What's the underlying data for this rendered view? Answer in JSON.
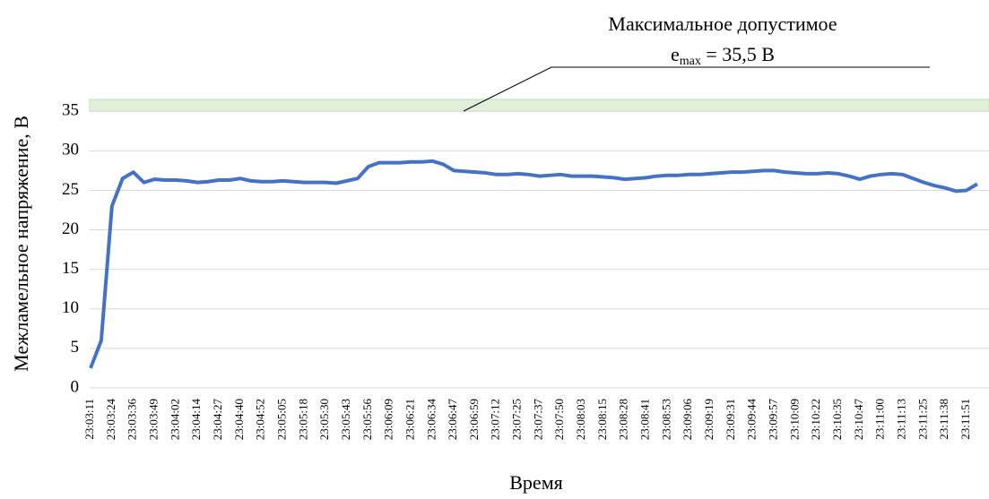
{
  "chart_data": {
    "type": "line",
    "y_axis_label": "Межламельное напряжение, В",
    "x_axis_label": "Время",
    "annotation": {
      "line1": "Максимальное допустимое",
      "symbol": "e",
      "subscript": "max",
      "rest": " = 35,5 В"
    },
    "threshold_band": {
      "range": [
        35,
        36.5
      ],
      "color": "#e2efd9"
    },
    "categories": [
      "23:03:11",
      null,
      "23:03:24",
      null,
      "23:03:36",
      null,
      "23:03:49",
      null,
      "23:04:02",
      null,
      "23:04:14",
      null,
      "23:04:27",
      null,
      "23:04:40",
      null,
      "23:04:52",
      null,
      "23:05:05",
      null,
      "23:05:18",
      null,
      "23:05:30",
      null,
      "23:05:43",
      null,
      "23:05:56",
      null,
      "23:06:09",
      null,
      "23:06:21",
      null,
      "23:06:34",
      null,
      "23:06:47",
      null,
      "23:06:59",
      null,
      "23:07:12",
      null,
      "23:07:25",
      null,
      "23:07:37",
      null,
      "23:07:50",
      null,
      "23:08:03",
      null,
      "23:08:15",
      null,
      "23:08:28",
      null,
      "23:08:41",
      null,
      "23:08:53",
      null,
      "23:09:06",
      null,
      "23:09:19",
      null,
      "23:09:31",
      null,
      "23:09:44",
      null,
      "23:09:57",
      null,
      "23:10:09",
      null,
      "23:10:22",
      null,
      "23:10:35",
      null,
      "23:10:47",
      null,
      "23:11:00",
      null,
      "23:11:13",
      null,
      "23:11:25",
      null,
      "23:11:38",
      null,
      "23:11:51",
      null
    ],
    "series": [
      {
        "color": "#4472c4",
        "values": [
          2.5,
          6,
          23,
          26.5,
          27.3,
          26,
          26.4,
          26.3,
          26.3,
          26.2,
          26,
          26.1,
          26.3,
          26.3,
          26.5,
          26.2,
          26.1,
          26.1,
          26.2,
          26.1,
          26,
          26,
          26,
          25.9,
          26.2,
          26.5,
          28,
          28.5,
          28.5,
          28.5,
          28.6,
          28.6,
          28.7,
          28.3,
          27.5,
          27.4,
          27.3,
          27.2,
          27,
          27,
          27.1,
          27,
          26.8,
          26.9,
          27,
          26.8,
          26.8,
          26.8,
          26.7,
          26.6,
          26.4,
          26.5,
          26.6,
          26.8,
          26.9,
          26.9,
          27,
          27,
          27.1,
          27.2,
          27.3,
          27.3,
          27.4,
          27.5,
          27.5,
          27.3,
          27.2,
          27.1,
          27.1,
          27.2,
          27.1,
          26.8,
          26.4,
          26.8,
          27,
          27.1,
          27,
          26.5,
          26,
          25.6,
          25.3,
          24.9,
          25,
          25.8
        ]
      }
    ],
    "ylim": [
      0,
      36.5
    ],
    "yticks": [
      0,
      5,
      10,
      15,
      20,
      25,
      30,
      35
    ],
    "grid": true
  }
}
